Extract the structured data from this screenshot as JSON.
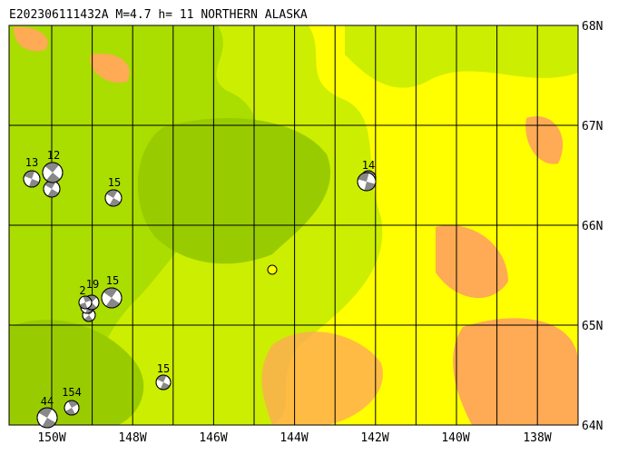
{
  "title": "E202306111432A  M=4.7  h= 11  NORTHERN ALASKA",
  "lat_labels": [
    "68N",
    "67N",
    "66N",
    "65N",
    "64N"
  ],
  "lon_labels": [
    "150W",
    "148W",
    "146W",
    "144W",
    "142W",
    "140W",
    "138W"
  ],
  "events": [
    {
      "label": "13"
    },
    {
      "label": "12"
    },
    {
      "label": "15"
    },
    {
      "label": "14"
    },
    {
      "label": "19"
    },
    {
      "label": "2"
    },
    {
      "label": "15"
    },
    {
      "label": "15"
    },
    {
      "label": "154"
    },
    {
      "label": "44"
    }
  ]
}
